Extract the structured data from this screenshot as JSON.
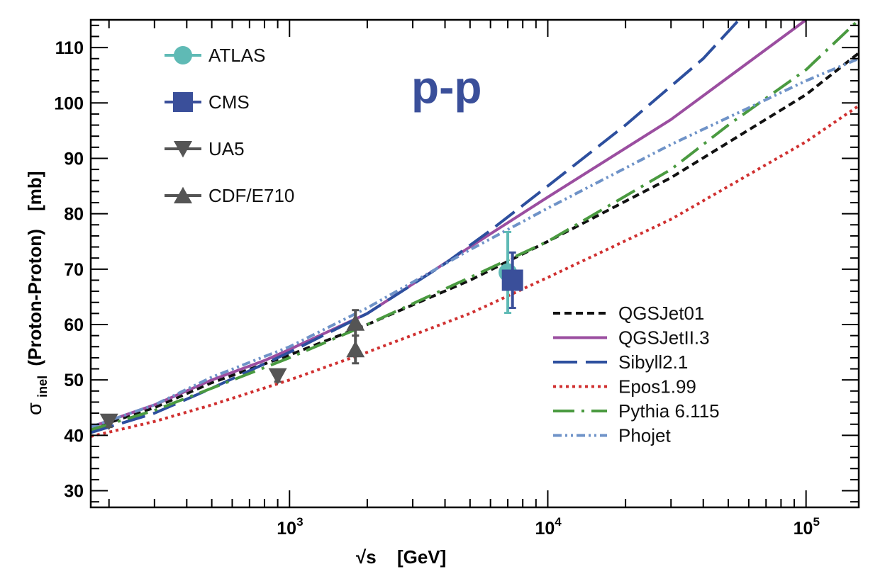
{
  "chart_data": {
    "type": "line",
    "title": "p-p",
    "title_color": "#3a4f9a",
    "xscale": "log",
    "xlim": [
      170,
      160000
    ],
    "ylim": [
      27,
      115
    ],
    "xlabel": {
      "sqrt": "√s",
      "unit": "[GeV]"
    },
    "ylabel": {
      "sigma": "σ",
      "sub": "inel",
      "text": "(Proton-Proton)",
      "unit": "[mb]"
    },
    "x_ticks": [
      {
        "value": 1000,
        "base": "10",
        "exp": "3"
      },
      {
        "value": 10000,
        "base": "10",
        "exp": "4"
      },
      {
        "value": 100000,
        "base": "10",
        "exp": "5"
      }
    ],
    "y_ticks": [
      "30",
      "40",
      "50",
      "60",
      "70",
      "80",
      "90",
      "100",
      "110"
    ],
    "series": [
      {
        "name": "QGSJet01",
        "color": "#111111",
        "style": "dash-short",
        "x": [
          170,
          300,
          500,
          1000,
          2000,
          5000,
          10000,
          30000,
          100000,
          160000
        ],
        "y": [
          41.2,
          45.0,
          49.5,
          54.5,
          60.0,
          68.0,
          75.0,
          86.5,
          101.5,
          109.0
        ]
      },
      {
        "name": "QGSJetII.3",
        "color": "#9b4ea0",
        "style": "solid",
        "x": [
          170,
          300,
          500,
          800,
          1000,
          2000,
          5000,
          10000,
          30000,
          100000
        ],
        "y": [
          41.5,
          45.5,
          50.0,
          53.5,
          55.5,
          62.0,
          74.0,
          83.0,
          97.0,
          115.0
        ]
      },
      {
        "name": "Sibyll2.1",
        "color": "#2d4f9e",
        "style": "dash-long",
        "x": [
          170,
          300,
          500,
          1000,
          2000,
          4000,
          6000,
          10000,
          20000,
          40000,
          55000
        ],
        "y": [
          40.5,
          44.0,
          48.5,
          55.0,
          62.0,
          71.0,
          77.0,
          85.0,
          96.0,
          108.0,
          115.0
        ]
      },
      {
        "name": "Epos1.99",
        "color": "#d03030",
        "style": "dotted",
        "x": [
          170,
          300,
          500,
          1000,
          2000,
          5000,
          10000,
          30000,
          100000,
          160000
        ],
        "y": [
          39.8,
          42.5,
          45.5,
          50.0,
          55.0,
          62.0,
          68.5,
          79.0,
          93.0,
          99.5
        ]
      },
      {
        "name": "Pythia 6.115",
        "color": "#4a9a40",
        "style": "dash-dot-long",
        "x": [
          170,
          300,
          500,
          1000,
          2000,
          5000,
          10000,
          30000,
          50000,
          100000,
          160000
        ],
        "y": [
          41.0,
          44.5,
          48.5,
          54.0,
          60.0,
          68.5,
          75.0,
          88.0,
          96.0,
          106.0,
          115.0
        ]
      },
      {
        "name": "Phojet",
        "color": "#6f93c8",
        "style": "dash-dot-dot",
        "x": [
          170,
          300,
          500,
          1000,
          2000,
          5000,
          10000,
          30000,
          100000,
          160000
        ],
        "y": [
          41.5,
          45.5,
          50.5,
          56.0,
          63.0,
          73.5,
          81.0,
          92.5,
          104.0,
          108.0
        ]
      }
    ],
    "points": [
      {
        "name": "ATLAS",
        "marker": "circle",
        "color": "#5fbab5",
        "x": 7000,
        "y": 69.4,
        "err_low": 7.3,
        "err_high": 7.3
      },
      {
        "name": "CMS",
        "marker": "square",
        "color": "#3a4f9a",
        "x": 7300,
        "y": 68.0,
        "err_low": 5.0,
        "err_high": 5.0
      },
      {
        "name": "UA5",
        "marker": "triangle-down",
        "color": "#555555",
        "x": 200,
        "y": 42.5,
        "err_low": 1.0,
        "err_high": 1.0
      },
      {
        "name": "UA5",
        "marker": "triangle-down",
        "color": "#555555",
        "x": 900,
        "y": 50.7,
        "err_low": 1.0,
        "err_high": 1.0
      },
      {
        "name": "CDF/E710",
        "marker": "triangle-up",
        "color": "#555555",
        "x": 1800,
        "y": 60.3,
        "err_low": 2.3,
        "err_high": 2.3
      },
      {
        "name": "CDF/E710",
        "marker": "triangle-up",
        "color": "#555555",
        "x": 1800,
        "y": 55.5,
        "err_low": 2.5,
        "err_high": 2.5
      }
    ],
    "legend_markers": [
      {
        "label": "ATLAS",
        "marker": "circle",
        "color": "#5fbab5"
      },
      {
        "label": "CMS",
        "marker": "square",
        "color": "#3a4f9a"
      },
      {
        "label": "UA5",
        "marker": "triangle-down",
        "color": "#555555"
      },
      {
        "label": "CDF/E710",
        "marker": "triangle-up",
        "color": "#555555"
      }
    ],
    "legend_lines_position": "bottom-right",
    "legend_markers_position": "top-left"
  }
}
